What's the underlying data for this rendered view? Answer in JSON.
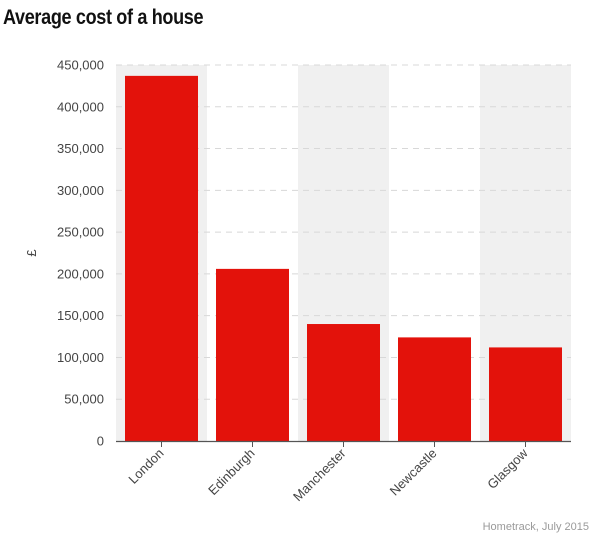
{
  "title": "Average cost of a house",
  "source": "Hometrack, July 2015",
  "colors": {
    "bar": "#e3120b",
    "band": "#f0f0f0",
    "grid": "#d8d8d8",
    "axis": "#555555",
    "text": "#444444"
  },
  "chart_data": {
    "type": "bar",
    "title": "Average cost of a house",
    "xlabel": "",
    "ylabel": "£",
    "categories": [
      "London",
      "Edinburgh",
      "Manchester",
      "Newcastle",
      "Glasgow"
    ],
    "values": [
      437000,
      206000,
      140000,
      124000,
      112000
    ],
    "ylim": [
      0,
      450000
    ],
    "yticks": [
      0,
      50000,
      100000,
      150000,
      200000,
      250000,
      300000,
      350000,
      400000,
      450000
    ],
    "ytick_labels": [
      "0",
      "50,000",
      "100,000",
      "150,000",
      "200,000",
      "250,000",
      "300,000",
      "350,000",
      "400,000",
      "450,000"
    ],
    "grid": true,
    "alternating_bands": true,
    "legend": "none"
  }
}
